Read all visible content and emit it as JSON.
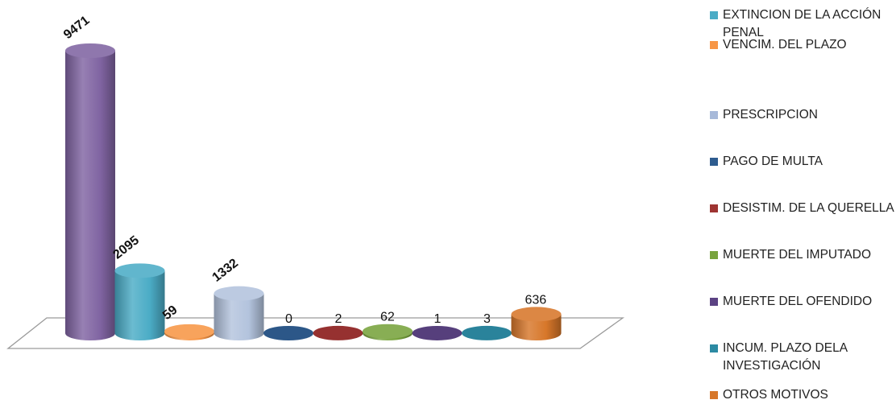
{
  "chart_data": {
    "type": "bar",
    "title": "",
    "xlabel": "",
    "ylabel": "",
    "ylim": [
      0,
      9471
    ],
    "grid": false,
    "legend_position": "right",
    "categories": [
      "MUERTE DEL OFENDIDO",
      "EXTINCION  DE LA ACCIÓN PENAL",
      "VENCIM.  DEL  PLAZO",
      "PRESCRIPCION",
      "PAGO DE MULTA",
      "DESISTIM. DE  LA QUERELLA",
      "MUERTE DEL IMPUTADO",
      "MUERTE DEL OFENDIDO",
      "INCUM. PLAZO DELA INVESTIGACIÓN",
      "OTROS MOTIVOS"
    ],
    "values": [
      9471,
      2095,
      59,
      1332,
      0,
      2,
      62,
      1,
      3,
      636
    ],
    "value_labels": [
      "9471",
      "2095",
      "59",
      "1332",
      "0",
      "2",
      "62",
      "1",
      "3",
      "636"
    ],
    "colors": [
      "#8064A2",
      "#4BACC6",
      "#F79646",
      "#B3C3DD",
      "#2E5C8F",
      "#9E3432",
      "#78A33D",
      "#5B4283",
      "#2C8AA3",
      "#D7772A"
    ]
  },
  "legend": [
    {
      "label": "EXTINCION  DE LA ACCIÓN PENAL",
      "color": "#4BACC6"
    },
    {
      "label": "VENCIM.  DEL  PLAZO",
      "color": "#F79646"
    },
    {
      "label": "PRESCRIPCION",
      "color": "#A7B9D9"
    },
    {
      "label": "PAGO DE MULTA",
      "color": "#2E5C8F"
    },
    {
      "label": "DESISTIM. DE  LA QUERELLA",
      "color": "#9E3432"
    },
    {
      "label": "MUERTE DEL IMPUTADO",
      "color": "#78A33D"
    },
    {
      "label": "MUERTE DEL OFENDIDO",
      "color": "#5B4283"
    },
    {
      "label": "INCUM. PLAZO DELA INVESTIGACIÓN",
      "color": "#2C8AA3"
    },
    {
      "label": "OTROS MOTIVOS",
      "color": "#D7772A"
    }
  ]
}
